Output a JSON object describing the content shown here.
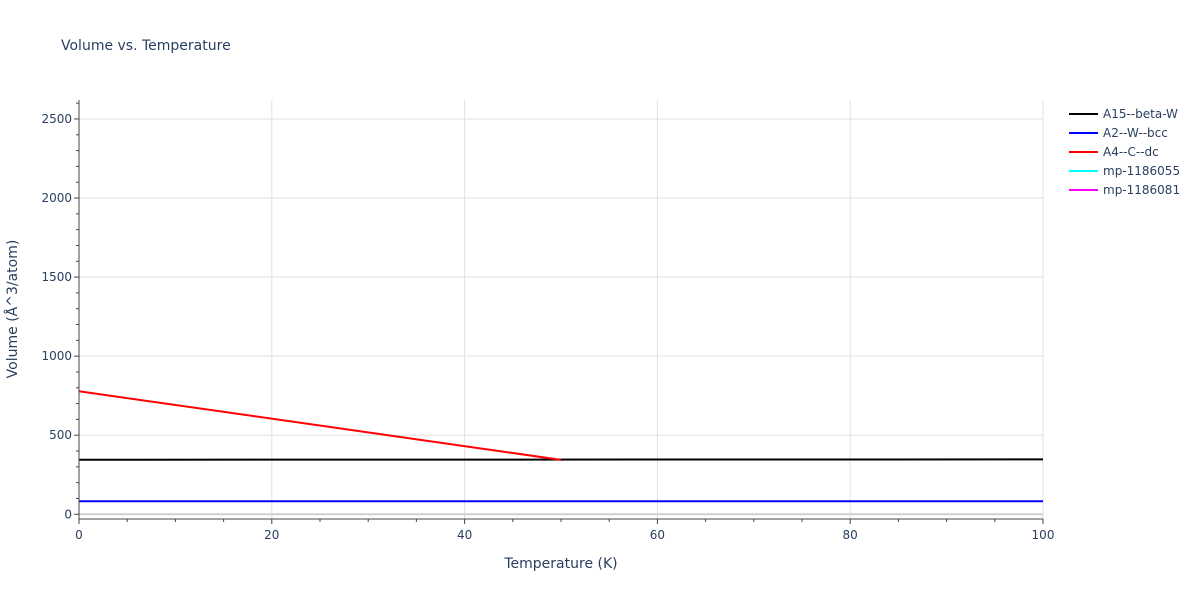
{
  "chart_data": {
    "type": "line",
    "title": "Volume vs. Temperature",
    "xlabel": "Temperature (K)",
    "ylabel": "Volume (Å^3/atom)",
    "xlim": [
      0,
      100
    ],
    "ylim": [
      -30,
      2620
    ],
    "x_ticks": [
      0,
      20,
      40,
      60,
      80,
      100
    ],
    "y_ticks": [
      0,
      500,
      1000,
      1500,
      2000,
      2500
    ],
    "grid": true,
    "legend_position": "top-right, outside plot",
    "series": [
      {
        "name": "A15--beta-W",
        "color": "#000000",
        "x": [
          0,
          100
        ],
        "y": [
          345,
          347
        ]
      },
      {
        "name": "A2--W--bcc",
        "color": "#0000ff",
        "x": [
          0,
          100
        ],
        "y": [
          82,
          82
        ]
      },
      {
        "name": "A4--C--dc",
        "color": "#ff0000",
        "x": [
          0,
          50
        ],
        "y": [
          778,
          344
        ]
      },
      {
        "name": "mp-1186055",
        "color": "#00ffff",
        "x": [],
        "y": []
      },
      {
        "name": "mp-1186081",
        "color": "#ff00ff",
        "x": [],
        "y": []
      }
    ]
  }
}
